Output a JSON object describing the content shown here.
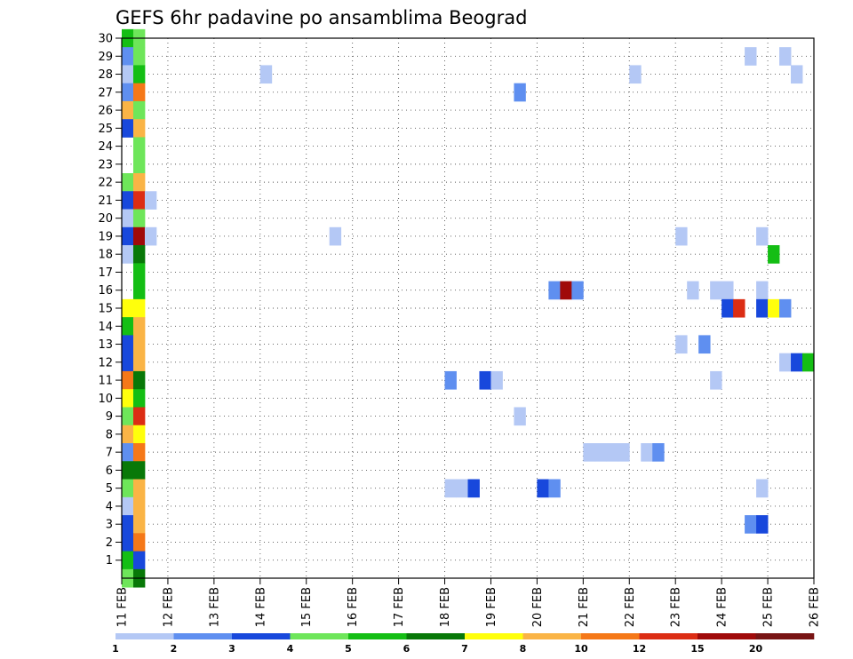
{
  "chart_data": {
    "type": "heatmap",
    "title": "GEFS 6hr padavine po ansamblima Beograd",
    "x_tick_labels": [
      "11 FEB",
      "12 FEB",
      "13 FEB",
      "14 FEB",
      "15 FEB",
      "16 FEB",
      "17 FEB",
      "18 FEB",
      "19 FEB",
      "20 FEB",
      "21 FEB",
      "22 FEB",
      "23 FEB",
      "24 FEB",
      "25 FEB",
      "26 FEB"
    ],
    "x_range_steps": [
      0,
      60
    ],
    "y_tick_labels": [
      "1",
      "2",
      "3",
      "4",
      "5",
      "6",
      "7",
      "8",
      "9",
      "10",
      "11",
      "12",
      "13",
      "14",
      "15",
      "16",
      "17",
      "18",
      "19",
      "20",
      "21",
      "22",
      "23",
      "24",
      "25",
      "26",
      "27",
      "28",
      "29",
      "30"
    ],
    "y_range": [
      0,
      30
    ],
    "grid": "dotted",
    "colorbar": {
      "labels": [
        "1",
        "2",
        "3",
        "4",
        "5",
        "6",
        "7",
        "8",
        "10",
        "12",
        "15",
        "20"
      ],
      "colors": [
        "#b4c8f5",
        "#5f8ff0",
        "#1848dc",
        "#6ee65a",
        "#14be14",
        "#087808",
        "#ffff0c",
        "#fab446",
        "#f57818",
        "#dc2d14",
        "#a00a0a",
        "#781414"
      ]
    },
    "cells": [
      [
        30,
        0,
        4
      ],
      [
        30,
        1,
        3
      ],
      [
        29,
        0,
        1
      ],
      [
        29,
        1,
        3
      ],
      [
        28,
        0,
        0
      ],
      [
        28,
        1,
        4
      ],
      [
        27,
        0,
        1
      ],
      [
        27,
        1,
        8
      ],
      [
        26,
        0,
        7
      ],
      [
        26,
        1,
        3
      ],
      [
        25,
        0,
        2
      ],
      [
        25,
        1,
        7
      ],
      [
        24,
        1,
        3
      ],
      [
        23,
        1,
        3
      ],
      [
        22,
        0,
        3
      ],
      [
        22,
        1,
        7
      ],
      [
        21,
        0,
        2
      ],
      [
        21,
        1,
        9
      ],
      [
        21,
        2,
        0
      ],
      [
        20,
        0,
        0
      ],
      [
        20,
        1,
        3
      ],
      [
        19,
        0,
        2
      ],
      [
        19,
        1,
        10
      ],
      [
        19,
        2,
        0
      ],
      [
        18,
        0,
        0
      ],
      [
        18,
        1,
        5
      ],
      [
        17,
        1,
        4
      ],
      [
        16,
        1,
        4
      ],
      [
        15,
        0,
        6
      ],
      [
        15,
        1,
        6
      ],
      [
        14,
        0,
        4
      ],
      [
        14,
        1,
        7
      ],
      [
        13,
        0,
        2
      ],
      [
        13,
        1,
        7
      ],
      [
        12,
        0,
        2
      ],
      [
        12,
        1,
        7
      ],
      [
        11,
        0,
        8
      ],
      [
        11,
        1,
        5
      ],
      [
        10,
        0,
        6
      ],
      [
        10,
        1,
        4
      ],
      [
        9,
        0,
        3
      ],
      [
        9,
        1,
        9
      ],
      [
        8,
        0,
        7
      ],
      [
        8,
        1,
        6
      ],
      [
        7,
        0,
        1
      ],
      [
        7,
        1,
        8
      ],
      [
        6,
        0,
        5
      ],
      [
        6,
        1,
        5
      ],
      [
        5,
        0,
        3
      ],
      [
        5,
        1,
        7
      ],
      [
        4,
        0,
        0
      ],
      [
        4,
        1,
        7
      ],
      [
        3,
        0,
        2
      ],
      [
        3,
        1,
        7
      ],
      [
        2,
        0,
        2
      ],
      [
        2,
        1,
        8
      ],
      [
        1,
        0,
        4
      ],
      [
        1,
        1,
        2
      ],
      [
        0,
        0,
        3
      ],
      [
        0,
        1,
        5
      ],
      [
        28,
        12,
        0
      ],
      [
        19,
        18,
        0
      ],
      [
        11,
        28,
        1
      ],
      [
        5,
        28,
        0
      ],
      [
        5,
        29,
        0
      ],
      [
        5,
        30,
        2
      ],
      [
        11,
        31,
        2
      ],
      [
        11,
        32,
        0
      ],
      [
        27,
        34,
        1
      ],
      [
        9,
        34,
        0
      ],
      [
        5,
        36,
        2
      ],
      [
        5,
        37,
        1
      ],
      [
        16,
        37,
        1
      ],
      [
        16,
        38,
        10
      ],
      [
        16,
        39,
        1
      ],
      [
        7,
        40,
        0
      ],
      [
        7,
        41,
        0
      ],
      [
        7,
        42,
        0
      ],
      [
        7,
        43,
        0
      ],
      [
        28,
        44,
        0
      ],
      [
        7,
        45,
        0
      ],
      [
        7,
        46,
        1
      ],
      [
        19,
        48,
        0
      ],
      [
        13,
        48,
        0
      ],
      [
        16,
        49,
        0
      ],
      [
        13,
        50,
        1
      ],
      [
        16,
        51,
        0
      ],
      [
        16,
        52,
        0
      ],
      [
        11,
        51,
        0
      ],
      [
        15,
        52,
        2
      ],
      [
        15,
        53,
        9
      ],
      [
        29,
        54,
        0
      ],
      [
        3,
        54,
        1
      ],
      [
        3,
        55,
        2
      ],
      [
        19,
        55,
        0
      ],
      [
        18,
        56,
        4
      ],
      [
        16,
        55,
        0
      ],
      [
        15,
        55,
        2
      ],
      [
        15,
        56,
        6
      ],
      [
        15,
        57,
        1
      ],
      [
        5,
        55,
        0
      ],
      [
        29,
        57,
        0
      ],
      [
        12,
        57,
        0
      ],
      [
        12,
        58,
        2
      ],
      [
        12,
        59,
        4
      ],
      [
        28,
        58,
        0
      ]
    ]
  }
}
